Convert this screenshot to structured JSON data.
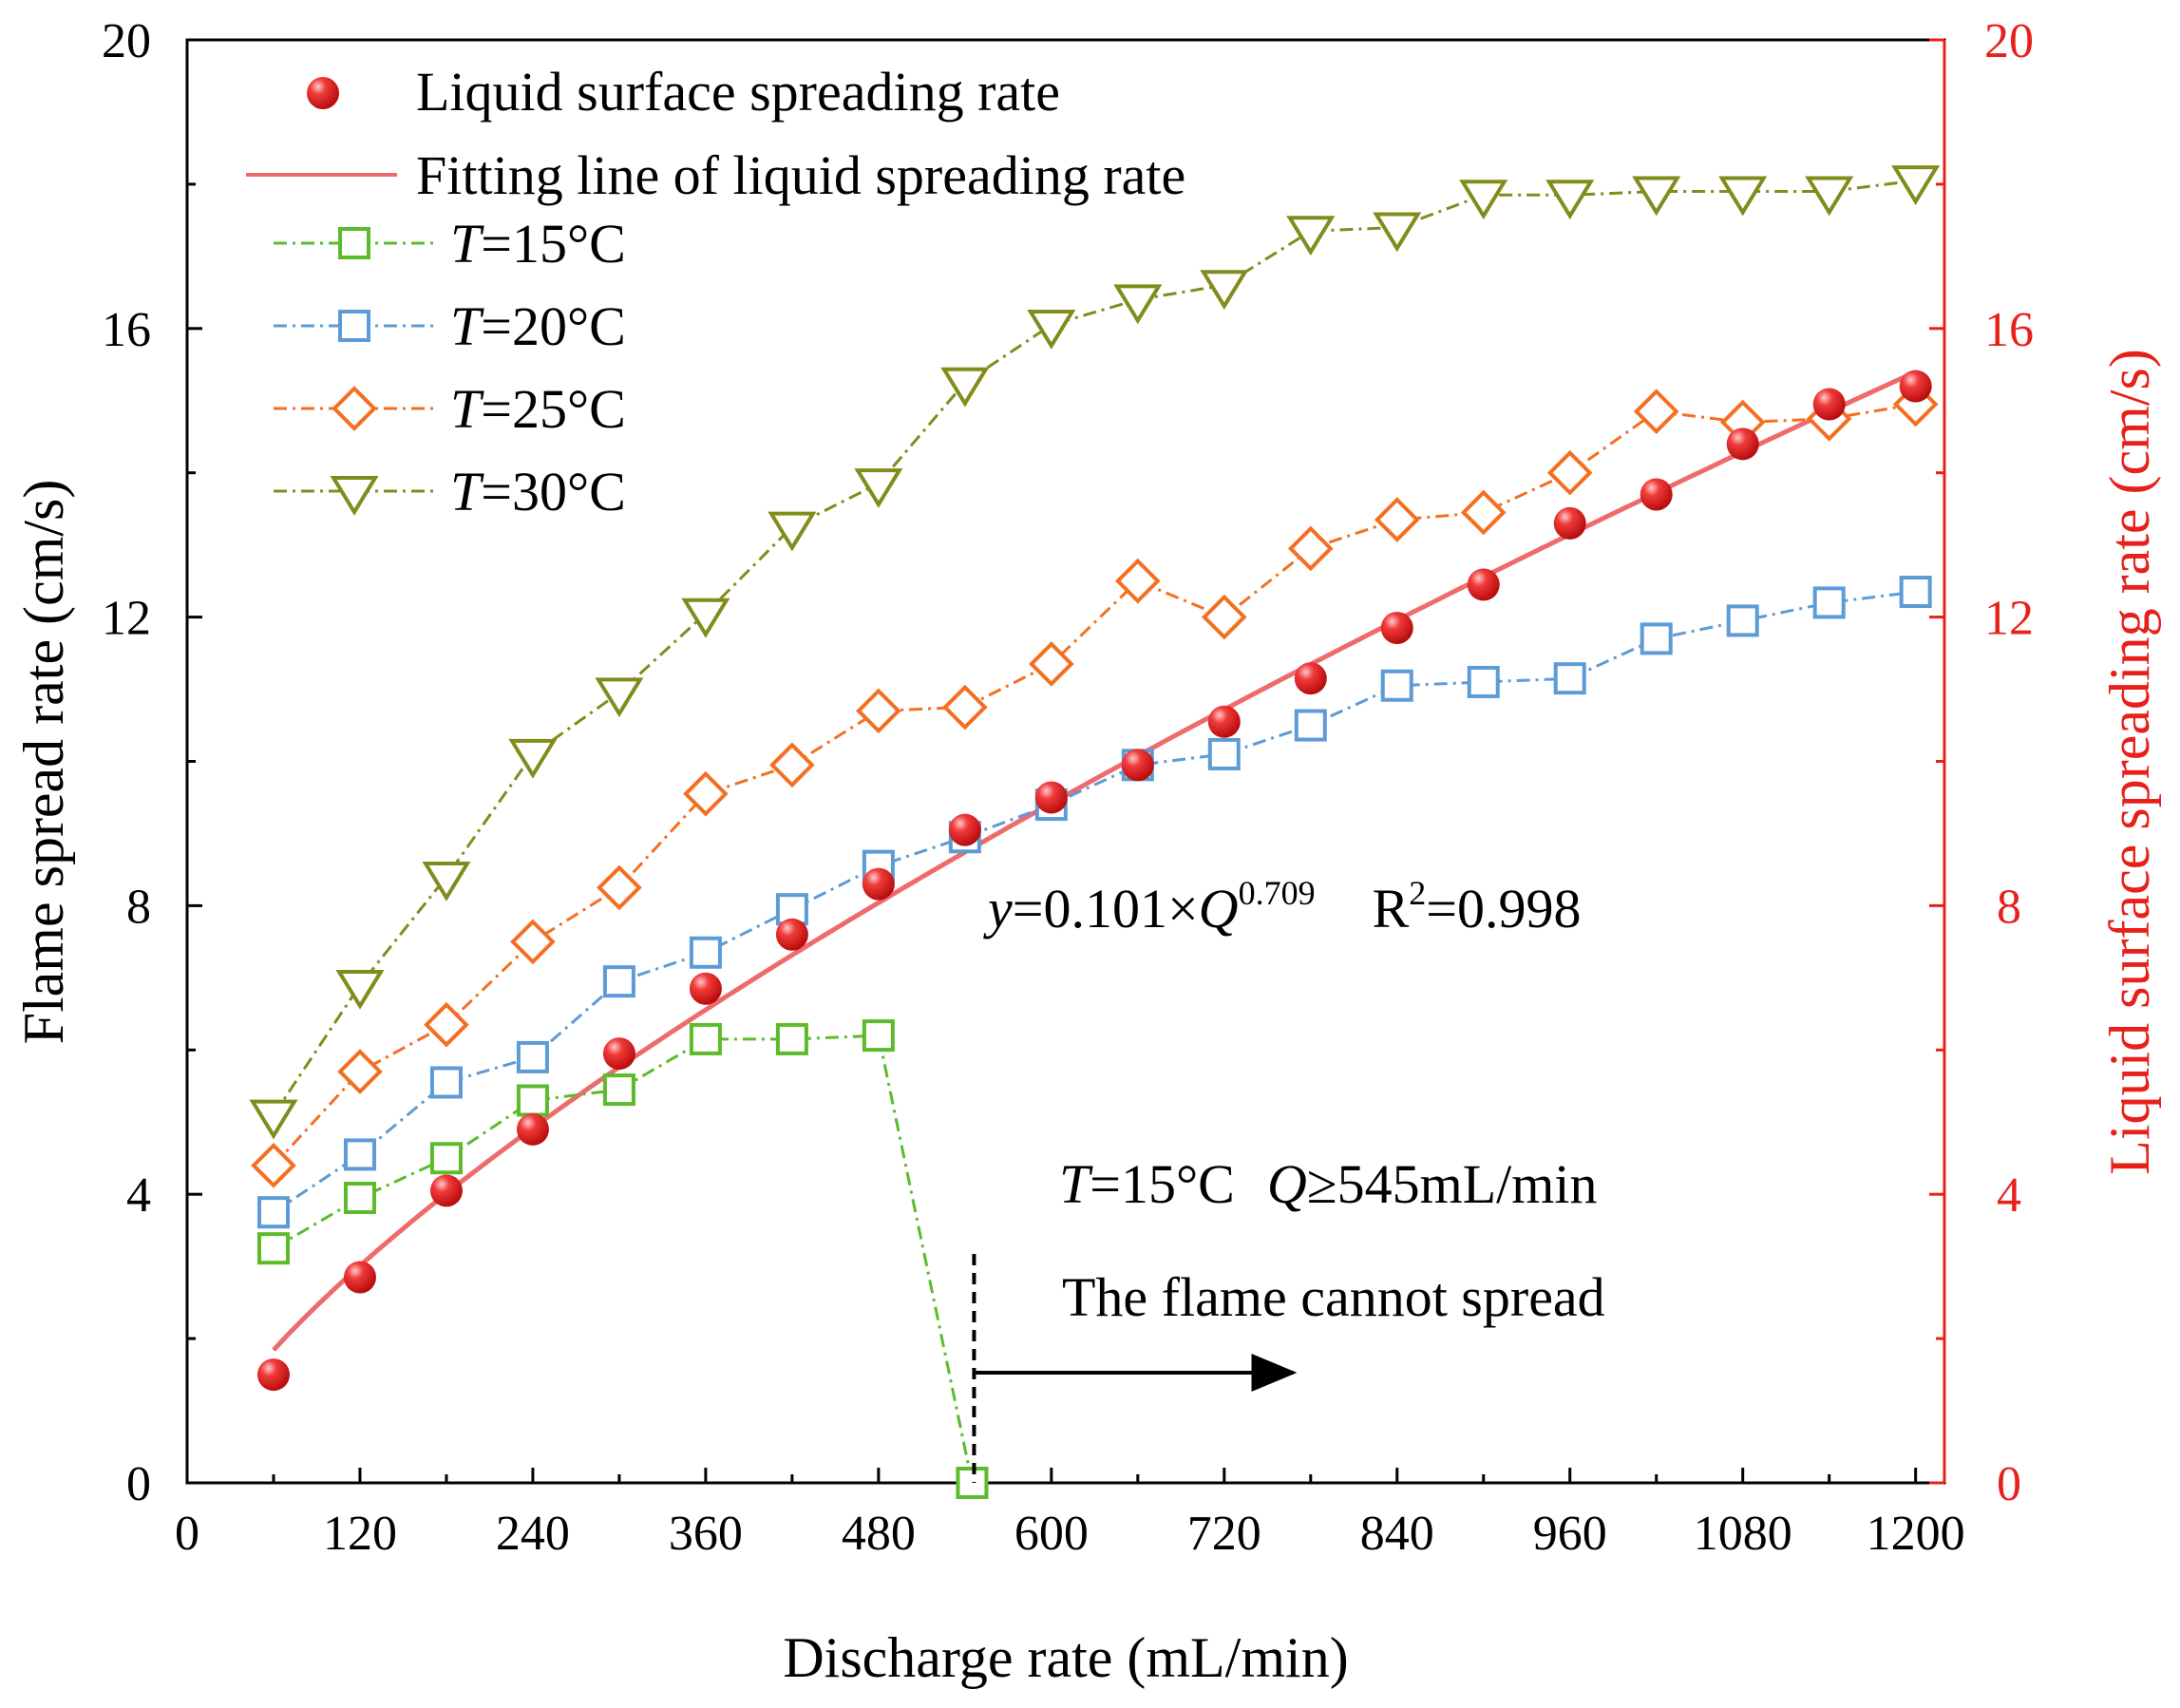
{
  "colors": {
    "axis": "#000000",
    "right_axis": "#e8201a",
    "t15": "#5bbb2a",
    "t20": "#5d9bd6",
    "t25": "#f36f21",
    "t30": "#828c1c",
    "liquid_marker": "#e41d1d",
    "fit_line": "#ef6b6b"
  },
  "chart_data": {
    "type": "line",
    "xlabel": "Discharge rate (mL/min)",
    "ylabel": "Flame spread rate (cm/s)",
    "y2label": "Liquid surface spreading rate (cm/s)",
    "xlim": [
      0,
      1220
    ],
    "ylim": [
      0,
      20
    ],
    "y2lim": [
      0,
      20
    ],
    "xticks": [
      0,
      120,
      240,
      360,
      480,
      600,
      720,
      840,
      960,
      1080,
      1200
    ],
    "yticks": [
      0,
      4,
      8,
      12,
      16,
      20
    ],
    "y2ticks": [
      0,
      4,
      8,
      12,
      16,
      20
    ],
    "series": [
      {
        "key": "t15",
        "label_italic": "T",
        "label_rest": "=15°C",
        "marker": "square",
        "dash": "dashdot",
        "x": [
          60,
          120,
          180,
          240,
          300,
          360,
          420,
          480,
          545
        ],
        "y": [
          3.25,
          3.95,
          4.5,
          5.3,
          5.45,
          6.15,
          6.15,
          6.2,
          0
        ]
      },
      {
        "key": "t20",
        "label_italic": "T",
        "label_rest": "=20°C",
        "marker": "square",
        "dash": "dashdot",
        "x": [
          60,
          120,
          180,
          240,
          300,
          360,
          420,
          480,
          540,
          600,
          660,
          720,
          780,
          840,
          900,
          960,
          1020,
          1080,
          1140,
          1200
        ],
        "y": [
          3.75,
          4.55,
          5.55,
          5.9,
          6.95,
          7.35,
          7.95,
          8.55,
          8.95,
          9.4,
          9.95,
          10.1,
          10.5,
          11.05,
          11.1,
          11.15,
          11.7,
          11.95,
          12.2,
          12.35
        ]
      },
      {
        "key": "t25",
        "label_italic": "T",
        "label_rest": "=25°C",
        "marker": "diamond",
        "dash": "dashdot",
        "x": [
          60,
          120,
          180,
          240,
          300,
          360,
          420,
          480,
          540,
          600,
          660,
          720,
          780,
          840,
          900,
          960,
          1020,
          1080,
          1140,
          1200
        ],
        "y": [
          4.4,
          5.7,
          6.35,
          7.5,
          8.25,
          9.55,
          9.95,
          10.7,
          10.75,
          11.35,
          12.5,
          12.0,
          12.95,
          13.35,
          13.45,
          14.0,
          14.85,
          14.7,
          14.75,
          14.95
        ]
      },
      {
        "key": "t30",
        "label_italic": "T",
        "label_rest": "=30°C",
        "marker": "triangle-down",
        "dash": "dashdot",
        "x": [
          60,
          120,
          180,
          240,
          300,
          360,
          420,
          480,
          540,
          600,
          660,
          720,
          780,
          840,
          900,
          960,
          1020,
          1080,
          1140,
          1200
        ],
        "y": [
          5.1,
          6.9,
          8.4,
          10.1,
          10.95,
          12.05,
          13.25,
          13.85,
          15.25,
          16.05,
          16.4,
          16.6,
          17.35,
          17.4,
          17.85,
          17.85,
          17.9,
          17.9,
          17.9,
          18.05
        ]
      }
    ],
    "liquid_rate": {
      "label": "Liquid surface spreading rate",
      "x": [
        60,
        120,
        180,
        240,
        300,
        360,
        420,
        480,
        540,
        600,
        660,
        720,
        780,
        840,
        900,
        960,
        1020,
        1080,
        1140,
        1200
      ],
      "y": [
        1.5,
        2.85,
        4.05,
        4.9,
        5.95,
        6.85,
        7.6,
        8.3,
        9.05,
        9.5,
        9.95,
        10.55,
        11.15,
        11.85,
        12.45,
        13.3,
        13.7,
        14.4,
        14.95,
        15.2
      ]
    },
    "fit": {
      "label": "Fitting line of liquid spreading rate",
      "coef": 0.101,
      "exponent": 0.709,
      "x_start": 60,
      "x_end": 1200
    },
    "annotations": {
      "eq_y": "y",
      "eq_mid": "=0.101×",
      "eq_q": "Q",
      "eq_exp": "0.709",
      "eq_r": "R",
      "eq_r_exp": "2",
      "eq_r_val": "=0.998",
      "cond_t": "T",
      "cond_t_val": "=15°C",
      "cond_q": "Q",
      "cond_q_val": "≥545mL/min",
      "note": "The flame cannot spread",
      "cutoff_x": 545
    }
  }
}
